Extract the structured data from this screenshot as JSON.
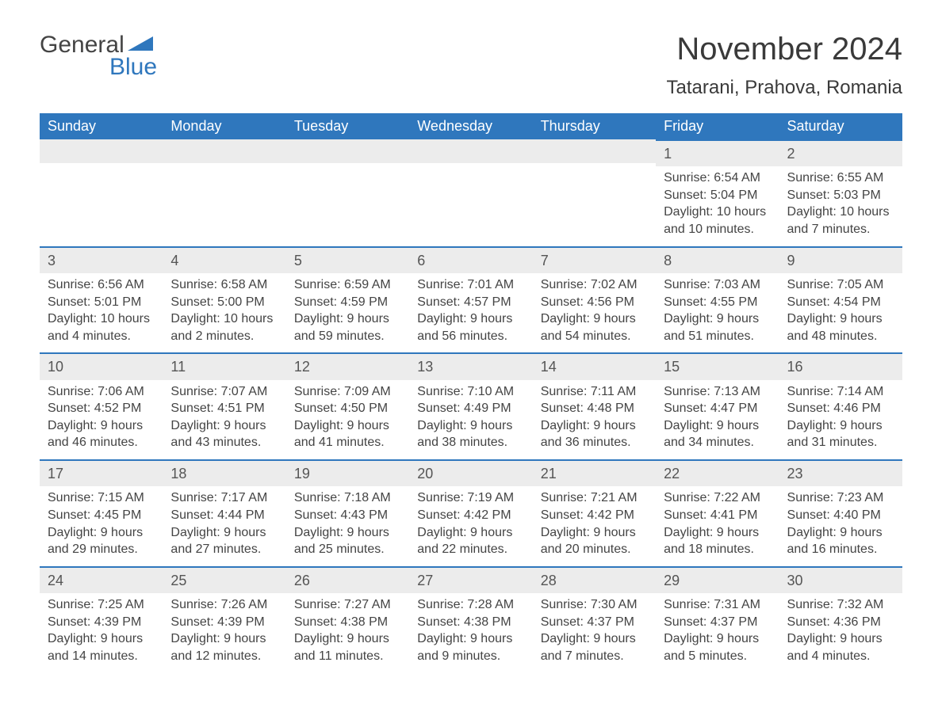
{
  "logo": {
    "word1": "General",
    "word2": "Blue",
    "triangle_color": "#2f77bd"
  },
  "title": "November 2024",
  "location": "Tatarani, Prahova, Romania",
  "colors": {
    "header_bg": "#2f77bd",
    "header_text": "#ffffff",
    "daynum_bg": "#ececec",
    "daynum_border": "#2f77bd",
    "text": "#444444",
    "background": "#ffffff"
  },
  "weekdays": [
    "Sunday",
    "Monday",
    "Tuesday",
    "Wednesday",
    "Thursday",
    "Friday",
    "Saturday"
  ],
  "labels": {
    "sunrise": "Sunrise: ",
    "sunset": "Sunset: ",
    "daylight": "Daylight: "
  },
  "leading_blanks": 5,
  "days": [
    {
      "n": 1,
      "sunrise": "6:54 AM",
      "sunset": "5:04 PM",
      "daylight": "10 hours and 10 minutes."
    },
    {
      "n": 2,
      "sunrise": "6:55 AM",
      "sunset": "5:03 PM",
      "daylight": "10 hours and 7 minutes."
    },
    {
      "n": 3,
      "sunrise": "6:56 AM",
      "sunset": "5:01 PM",
      "daylight": "10 hours and 4 minutes."
    },
    {
      "n": 4,
      "sunrise": "6:58 AM",
      "sunset": "5:00 PM",
      "daylight": "10 hours and 2 minutes."
    },
    {
      "n": 5,
      "sunrise": "6:59 AM",
      "sunset": "4:59 PM",
      "daylight": "9 hours and 59 minutes."
    },
    {
      "n": 6,
      "sunrise": "7:01 AM",
      "sunset": "4:57 PM",
      "daylight": "9 hours and 56 minutes."
    },
    {
      "n": 7,
      "sunrise": "7:02 AM",
      "sunset": "4:56 PM",
      "daylight": "9 hours and 54 minutes."
    },
    {
      "n": 8,
      "sunrise": "7:03 AM",
      "sunset": "4:55 PM",
      "daylight": "9 hours and 51 minutes."
    },
    {
      "n": 9,
      "sunrise": "7:05 AM",
      "sunset": "4:54 PM",
      "daylight": "9 hours and 48 minutes."
    },
    {
      "n": 10,
      "sunrise": "7:06 AM",
      "sunset": "4:52 PM",
      "daylight": "9 hours and 46 minutes."
    },
    {
      "n": 11,
      "sunrise": "7:07 AM",
      "sunset": "4:51 PM",
      "daylight": "9 hours and 43 minutes."
    },
    {
      "n": 12,
      "sunrise": "7:09 AM",
      "sunset": "4:50 PM",
      "daylight": "9 hours and 41 minutes."
    },
    {
      "n": 13,
      "sunrise": "7:10 AM",
      "sunset": "4:49 PM",
      "daylight": "9 hours and 38 minutes."
    },
    {
      "n": 14,
      "sunrise": "7:11 AM",
      "sunset": "4:48 PM",
      "daylight": "9 hours and 36 minutes."
    },
    {
      "n": 15,
      "sunrise": "7:13 AM",
      "sunset": "4:47 PM",
      "daylight": "9 hours and 34 minutes."
    },
    {
      "n": 16,
      "sunrise": "7:14 AM",
      "sunset": "4:46 PM",
      "daylight": "9 hours and 31 minutes."
    },
    {
      "n": 17,
      "sunrise": "7:15 AM",
      "sunset": "4:45 PM",
      "daylight": "9 hours and 29 minutes."
    },
    {
      "n": 18,
      "sunrise": "7:17 AM",
      "sunset": "4:44 PM",
      "daylight": "9 hours and 27 minutes."
    },
    {
      "n": 19,
      "sunrise": "7:18 AM",
      "sunset": "4:43 PM",
      "daylight": "9 hours and 25 minutes."
    },
    {
      "n": 20,
      "sunrise": "7:19 AM",
      "sunset": "4:42 PM",
      "daylight": "9 hours and 22 minutes."
    },
    {
      "n": 21,
      "sunrise": "7:21 AM",
      "sunset": "4:42 PM",
      "daylight": "9 hours and 20 minutes."
    },
    {
      "n": 22,
      "sunrise": "7:22 AM",
      "sunset": "4:41 PM",
      "daylight": "9 hours and 18 minutes."
    },
    {
      "n": 23,
      "sunrise": "7:23 AM",
      "sunset": "4:40 PM",
      "daylight": "9 hours and 16 minutes."
    },
    {
      "n": 24,
      "sunrise": "7:25 AM",
      "sunset": "4:39 PM",
      "daylight": "9 hours and 14 minutes."
    },
    {
      "n": 25,
      "sunrise": "7:26 AM",
      "sunset": "4:39 PM",
      "daylight": "9 hours and 12 minutes."
    },
    {
      "n": 26,
      "sunrise": "7:27 AM",
      "sunset": "4:38 PM",
      "daylight": "9 hours and 11 minutes."
    },
    {
      "n": 27,
      "sunrise": "7:28 AM",
      "sunset": "4:38 PM",
      "daylight": "9 hours and 9 minutes."
    },
    {
      "n": 28,
      "sunrise": "7:30 AM",
      "sunset": "4:37 PM",
      "daylight": "9 hours and 7 minutes."
    },
    {
      "n": 29,
      "sunrise": "7:31 AM",
      "sunset": "4:37 PM",
      "daylight": "9 hours and 5 minutes."
    },
    {
      "n": 30,
      "sunrise": "7:32 AM",
      "sunset": "4:36 PM",
      "daylight": "9 hours and 4 minutes."
    }
  ]
}
